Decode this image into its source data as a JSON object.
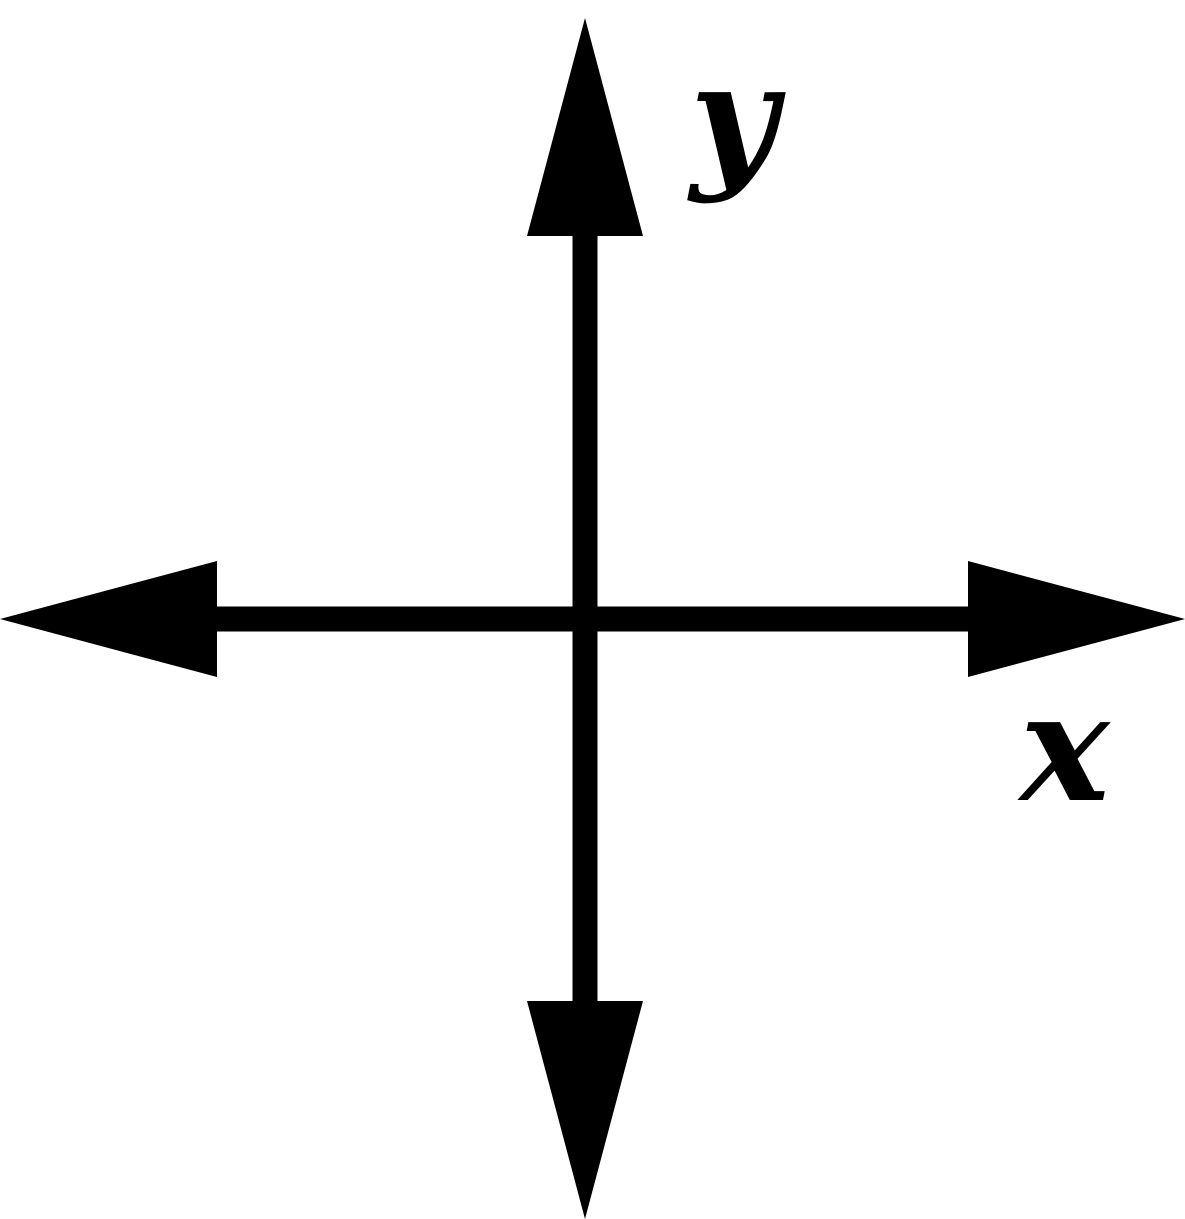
{
  "axes": {
    "x_label": "x",
    "y_label": "y"
  },
  "colors": {
    "stroke": "#000000",
    "background": "#ffffff"
  }
}
